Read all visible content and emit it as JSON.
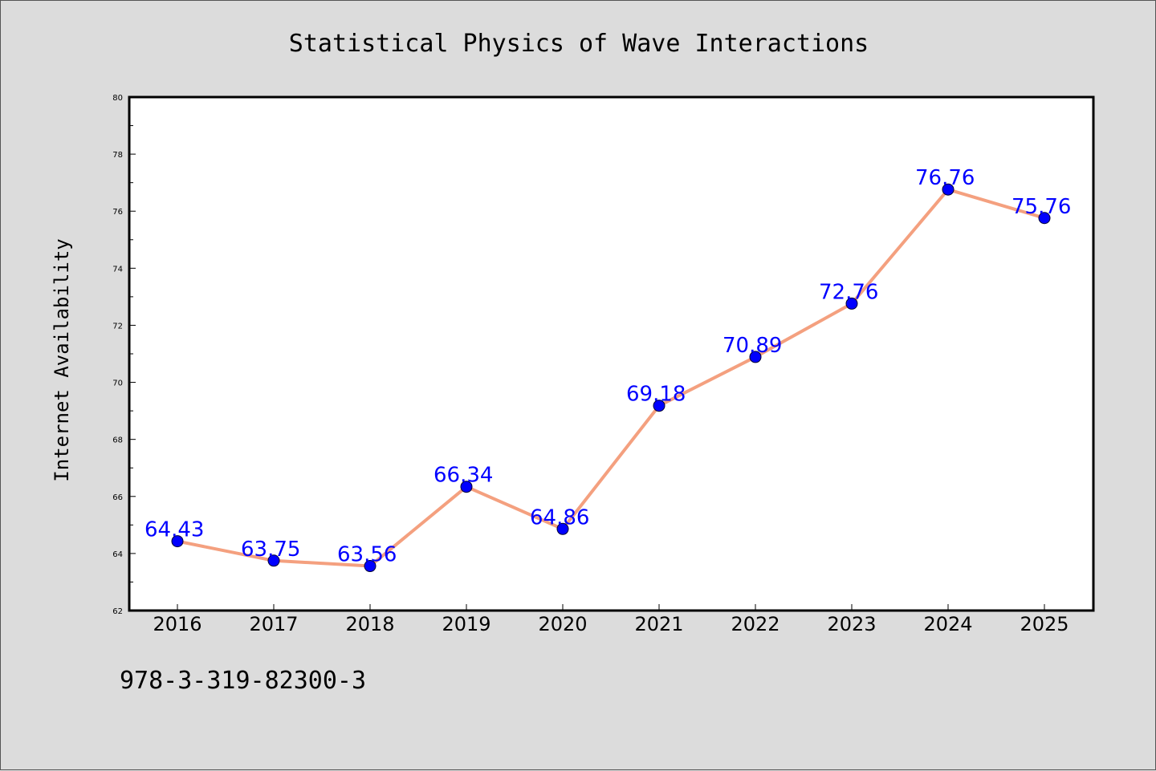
{
  "chart_data": {
    "type": "line",
    "title": "Statistical Physics of Wave Interactions",
    "xlabel": "",
    "ylabel": "Internet Availability",
    "categories": [
      "2016",
      "2017",
      "2018",
      "2019",
      "2020",
      "2021",
      "2022",
      "2023",
      "2024",
      "2025"
    ],
    "series": [
      {
        "values": [
          64.43,
          63.75,
          63.56,
          66.34,
          64.86,
          69.18,
          70.89,
          72.76,
          76.76,
          75.76
        ]
      }
    ],
    "data_labels": [
      "64.43",
      "63.75",
      "63.56",
      "66.34",
      "64.86",
      "69.18",
      "70.89",
      "72.76",
      "76.76",
      "75.76"
    ],
    "ylim": [
      62,
      80
    ],
    "yticks": [
      "62",
      "64",
      "66",
      "68",
      "70",
      "72",
      "74",
      "76",
      "78",
      "80"
    ],
    "grid": false,
    "legend": "none",
    "colors": {
      "line": "#f4a07f",
      "marker": "#0000ff",
      "label": "#0000ff",
      "background": "#dcdcdc",
      "plot_background": "#ffffff"
    }
  },
  "footer_text": "978-3-319-82300-3"
}
